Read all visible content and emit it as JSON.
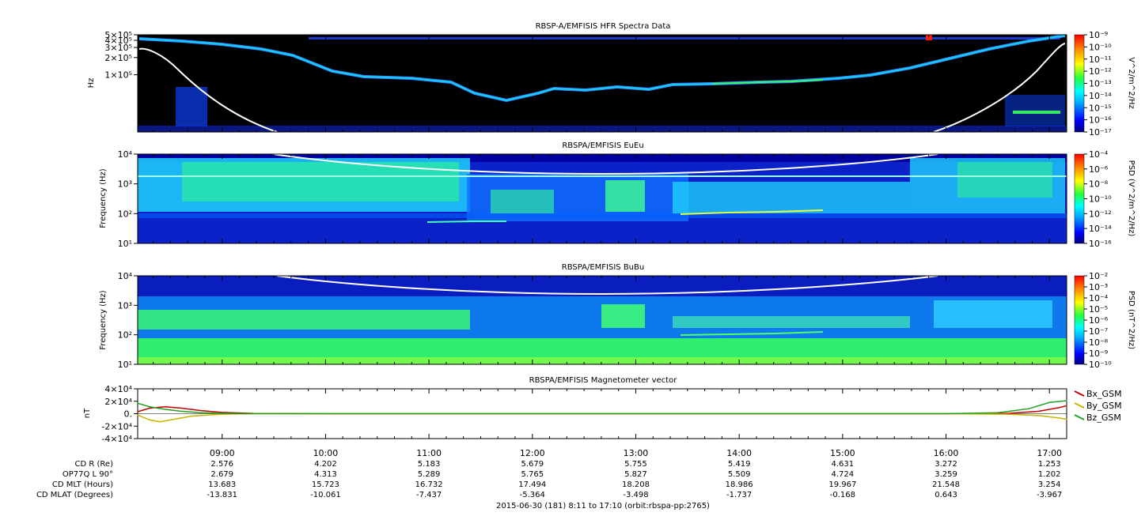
{
  "chart_data": [
    {
      "type": "heatmap",
      "title": "RBSP-A/EMFISIS  HFR Spectra Data",
      "ylabel": "Hz",
      "yscale": "log",
      "ylim": [
        10000,
        500000
      ],
      "ytick_labels": [
        "5×10⁵",
        "4×10⁵",
        "3×10⁵",
        "2×10⁵",
        "1×10⁵"
      ],
      "ytick_values": [
        500000,
        400000,
        300000,
        200000,
        100000
      ],
      "colorbar_label": "V^2/m^2/Hz",
      "colorbar_ticks": [
        "10⁻⁹",
        "10⁻¹⁰",
        "10⁻¹¹",
        "10⁻¹²",
        "10⁻¹³",
        "10⁻¹⁴",
        "10⁻¹⁵",
        "10⁻¹⁶",
        "10⁻¹⁷"
      ],
      "colorbar_range": [
        -17,
        -9
      ]
    },
    {
      "type": "heatmap",
      "title": "RBSPA/EMFISIS  EuEu",
      "ylabel": "Frequency (Hz)",
      "yscale": "log",
      "ylim": [
        10,
        10000
      ],
      "ytick_labels": [
        "10⁴",
        "10³",
        "10²",
        "10¹"
      ],
      "ytick_values": [
        10000,
        1000,
        100,
        10
      ],
      "colorbar_label": "PSD (V^2/m^2/Hz)",
      "colorbar_ticks": [
        "10⁻⁴",
        "10⁻⁶",
        "10⁻⁸",
        "10⁻¹⁰",
        "10⁻¹²",
        "10⁻¹⁴",
        "10⁻¹⁶"
      ],
      "colorbar_range": [
        -16,
        -4
      ]
    },
    {
      "type": "heatmap",
      "title": "RBSPA/EMFISIS  BuBu",
      "ylabel": "Frequency (Hz)",
      "yscale": "log",
      "ylim": [
        10,
        10000
      ],
      "ytick_labels": [
        "10⁴",
        "10³",
        "10²",
        "10¹"
      ],
      "ytick_values": [
        10000,
        1000,
        100,
        10
      ],
      "colorbar_label": "PSD (nT^2/Hz)",
      "colorbar_ticks": [
        "10⁻²",
        "10⁻³",
        "10⁻⁴",
        "10⁻⁵",
        "10⁻⁶",
        "10⁻⁷",
        "10⁻⁸",
        "10⁻⁹",
        "10⁻¹⁰"
      ],
      "colorbar_range": [
        -10,
        -2
      ]
    },
    {
      "type": "line",
      "title": "RBSPA/EMFISIS  Magnetometer vector",
      "ylabel": "nT",
      "ylim": [
        -40000,
        40000
      ],
      "ytick_labels": [
        "4×10⁴",
        "2×10⁴",
        "0.",
        "-2×10⁴",
        "-4×10⁴"
      ],
      "ytick_values": [
        40000,
        20000,
        0,
        -20000,
        -40000
      ],
      "series": [
        {
          "name": "Bx_GSM",
          "color": "#c00000",
          "x": [
            8.18,
            8.3,
            8.45,
            8.6,
            8.8,
            9.0,
            9.3,
            10,
            12,
            14,
            16,
            16.6,
            16.9,
            17.1,
            17.17
          ],
          "values": [
            3000,
            9000,
            11000,
            9000,
            5000,
            2000,
            500,
            0,
            0,
            0,
            0,
            500,
            4000,
            10000,
            13000
          ]
        },
        {
          "name": "By_GSM",
          "color": "#c8b400",
          "x": [
            8.18,
            8.3,
            8.4,
            8.5,
            8.7,
            9.0,
            9.3,
            10,
            12,
            14,
            16,
            16.6,
            16.9,
            17.1,
            17.17
          ],
          "values": [
            -2000,
            -10000,
            -13000,
            -10000,
            -4000,
            -800,
            0,
            0,
            0,
            0,
            0,
            -800,
            -3000,
            -7000,
            -9000
          ]
        },
        {
          "name": "Bz_GSM",
          "color": "#20a020",
          "x": [
            8.18,
            8.3,
            8.45,
            8.6,
            8.8,
            9.0,
            9.3,
            10,
            12,
            14,
            16,
            16.5,
            16.8,
            17.0,
            17.17
          ],
          "values": [
            17000,
            11000,
            7000,
            4000,
            1500,
            500,
            0,
            0,
            0,
            0,
            0,
            1500,
            8000,
            18000,
            21000
          ]
        }
      ]
    }
  ],
  "time_axis": {
    "range_hours": [
      8.1833,
      17.1667
    ],
    "ticks": [
      {
        "label": "09:00",
        "h": 9
      },
      {
        "label": "10:00",
        "h": 10
      },
      {
        "label": "11:00",
        "h": 11
      },
      {
        "label": "12:00",
        "h": 12
      },
      {
        "label": "13:00",
        "h": 13
      },
      {
        "label": "14:00",
        "h": 14
      },
      {
        "label": "15:00",
        "h": 15
      },
      {
        "label": "16:00",
        "h": 16
      },
      {
        "label": "17:00",
        "h": 17
      }
    ]
  },
  "ephemeris": {
    "rows": [
      {
        "label": "CD R (Re)",
        "values": [
          "2.576",
          "4.202",
          "5.183",
          "5.679",
          "5.755",
          "5.419",
          "4.631",
          "3.272",
          "1.253"
        ]
      },
      {
        "label": "OP77Q L 90°",
        "values": [
          "2.679",
          "4.313",
          "5.289",
          "5.765",
          "5.827",
          "5.509",
          "4.724",
          "3.259",
          "1.202"
        ]
      },
      {
        "label": "CD MLT (Hours)",
        "values": [
          "13.683",
          "15.723",
          "16.732",
          "17.494",
          "18.208",
          "18.986",
          "19.967",
          "21.548",
          "3.254"
        ]
      },
      {
        "label": "CD MLAT (Degrees)",
        "values": [
          "-13.831",
          "-10.061",
          "-7.437",
          "-5.364",
          "-3.498",
          "-1.737",
          "-0.168",
          "0.643",
          "-3.967"
        ]
      }
    ]
  },
  "footer": "2015-06-30 (181) 8:11 to 17:10 (orbit:rbspa-pp:2765)"
}
